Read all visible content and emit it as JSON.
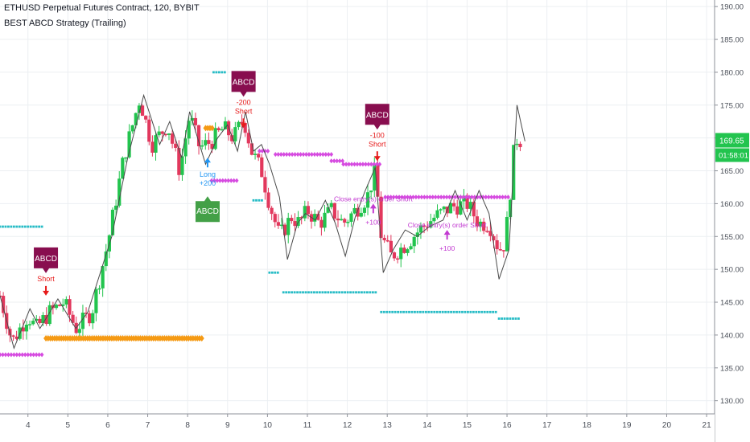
{
  "legend": {
    "symbol_line": "ETHUSD Perpetual Futures Contract, 120, BYBIT",
    "strategy_name": "BEST ABCD Strategy (Trailing)"
  },
  "colors": {
    "up": "#22c44e",
    "down": "#e2385d",
    "zigzag": "#4a4a4a",
    "teal_dots": "#27bcc6",
    "magenta_dots": "#d64be0",
    "orange_diamonds": "#f59a14",
    "short_arrow": "#e61a1a",
    "long_arrow": "#2196f3",
    "abcd_bear": "#880e4f",
    "abcd_bull": "#43a047",
    "close_label": "#c23ad1",
    "price_badge": "#22c44e",
    "grid": "#eceff2",
    "axis_text": "#4a4f58"
  },
  "chart_data": {
    "type": "candlestick",
    "title": "ETHUSD Perpetual Futures Contract, 120, BYBIT",
    "subtitle": "BEST ABCD Strategy (Trailing)",
    "xlim": [
      3.3,
      21.2
    ],
    "ylim": [
      128,
      191
    ],
    "x_ticks": [
      4,
      5,
      6,
      7,
      8,
      9,
      10,
      11,
      12,
      13,
      14,
      15,
      16,
      17,
      18,
      19,
      20,
      21
    ],
    "y_ticks": [
      "130.00",
      "135.00",
      "140.00",
      "145.00",
      "150.00",
      "155.00",
      "160.00",
      "165.00",
      "170.00",
      "175.00",
      "180.00",
      "185.00",
      "190.00"
    ],
    "grid": true,
    "current_price": {
      "value": 169.65,
      "label": "169.65",
      "countdown": "01:58:01"
    },
    "candle_path": [
      [
        3.3,
        146
      ],
      [
        3.6,
        139
      ],
      [
        4.0,
        143
      ],
      [
        4.2,
        141
      ],
      [
        4.55,
        143.5
      ],
      [
        4.9,
        145
      ],
      [
        5.2,
        141
      ],
      [
        5.6,
        143.5
      ],
      [
        6.0,
        154
      ],
      [
        6.4,
        167
      ],
      [
        6.8,
        176
      ],
      [
        7.1,
        169
      ],
      [
        7.5,
        172
      ],
      [
        7.8,
        165
      ],
      [
        8.05,
        173.5
      ],
      [
        8.3,
        168.5
      ],
      [
        8.6,
        169.5
      ],
      [
        8.9,
        171.5
      ],
      [
        9.15,
        170
      ],
      [
        9.4,
        173
      ],
      [
        9.6,
        168
      ],
      [
        9.85,
        165
      ],
      [
        10.05,
        160
      ],
      [
        10.3,
        155
      ],
      [
        10.6,
        158
      ],
      [
        10.8,
        157
      ],
      [
        11.0,
        159
      ],
      [
        11.3,
        157
      ],
      [
        11.6,
        159
      ],
      [
        11.9,
        157
      ],
      [
        12.2,
        159
      ],
      [
        12.5,
        161
      ],
      [
        12.7,
        165
      ],
      [
        12.85,
        155
      ],
      [
        13.1,
        152
      ],
      [
        13.5,
        154
      ],
      [
        13.8,
        156
      ],
      [
        14.2,
        158
      ],
      [
        14.6,
        159.5
      ],
      [
        15.0,
        160
      ],
      [
        15.3,
        157
      ],
      [
        15.55,
        157
      ],
      [
        15.8,
        153
      ],
      [
        15.95,
        154
      ],
      [
        16.1,
        163
      ],
      [
        16.2,
        170
      ],
      [
        16.4,
        169.5
      ]
    ],
    "zigzag": [
      [
        3.3,
        146
      ],
      [
        3.65,
        138
      ],
      [
        4.05,
        144
      ],
      [
        4.3,
        141
      ],
      [
        4.75,
        145.5
      ],
      [
        5.2,
        141
      ],
      [
        5.5,
        143.5
      ],
      [
        6.1,
        155
      ],
      [
        6.5,
        167
      ],
      [
        6.9,
        176.5
      ],
      [
        7.3,
        169
      ],
      [
        7.55,
        172.5
      ],
      [
        7.85,
        167
      ],
      [
        8.05,
        174
      ],
      [
        8.45,
        166
      ],
      [
        8.75,
        170
      ],
      [
        9.0,
        172
      ],
      [
        9.25,
        168
      ],
      [
        9.45,
        174
      ],
      [
        9.65,
        168
      ],
      [
        9.85,
        169
      ],
      [
        10.05,
        166
      ],
      [
        10.3,
        161
      ],
      [
        10.5,
        151.5
      ],
      [
        10.75,
        157
      ],
      [
        10.95,
        158.5
      ],
      [
        11.2,
        157.5
      ],
      [
        11.45,
        160.5
      ],
      [
        11.7,
        157
      ],
      [
        11.95,
        152
      ],
      [
        12.2,
        158
      ],
      [
        12.45,
        162
      ],
      [
        12.7,
        165.5
      ],
      [
        12.9,
        149.5
      ],
      [
        13.15,
        153
      ],
      [
        13.45,
        156
      ],
      [
        13.75,
        155
      ],
      [
        14.05,
        156.5
      ],
      [
        14.4,
        157.5
      ],
      [
        14.7,
        162
      ],
      [
        15.0,
        157.5
      ],
      [
        15.3,
        162
      ],
      [
        15.55,
        158.5
      ],
      [
        15.8,
        148.5
      ],
      [
        16.05,
        153
      ],
      [
        16.25,
        175
      ],
      [
        16.45,
        169.5
      ]
    ],
    "dot_series": [
      {
        "kind": "teal",
        "y": 156.5,
        "x": [
          3.3,
          4.35
        ]
      },
      {
        "kind": "magenta",
        "y": 137,
        "x": [
          3.3,
          4.35
        ]
      },
      {
        "kind": "orange",
        "y": 139.5,
        "x": [
          4.45,
          8.4
        ]
      },
      {
        "kind": "magenta",
        "y": 163.5,
        "x": [
          8.6,
          9.25
        ]
      },
      {
        "kind": "orange",
        "y": 171.5,
        "x": [
          8.45,
          8.65
        ]
      },
      {
        "kind": "teal",
        "y": 180,
        "x": [
          8.65,
          8.95
        ]
      },
      {
        "kind": "teal",
        "y": 160.5,
        "x": [
          9.65,
          9.9
        ]
      },
      {
        "kind": "teal",
        "y": 149.5,
        "x": [
          10.05,
          10.3
        ]
      },
      {
        "kind": "magenta",
        "y": 178.5,
        "x": [
          9.5,
          9.7
        ]
      },
      {
        "kind": "magenta",
        "y": 168,
        "x": [
          9.8,
          10.05
        ]
      },
      {
        "kind": "magenta",
        "y": 167.5,
        "x": [
          10.2,
          11.6
        ]
      },
      {
        "kind": "magenta",
        "y": 166.5,
        "x": [
          11.6,
          11.9
        ]
      },
      {
        "kind": "magenta",
        "y": 166,
        "x": [
          11.9,
          12.85
        ]
      },
      {
        "kind": "teal",
        "y": 146.5,
        "x": [
          10.4,
          12.75
        ]
      },
      {
        "kind": "magenta",
        "y": 161,
        "x": [
          12.95,
          16.05
        ]
      },
      {
        "kind": "teal",
        "y": 143.5,
        "x": [
          12.85,
          15.75
        ]
      },
      {
        "kind": "teal",
        "y": 142.5,
        "x": [
          15.8,
          16.35
        ]
      }
    ],
    "signals": [
      {
        "type": "short",
        "x": 4.45,
        "y": 146,
        "text": "Short",
        "pattern": "ABCD"
      },
      {
        "type": "short",
        "x": 9.4,
        "y": 171.5,
        "text": "-200 Short",
        "pattern": "ABCD"
      },
      {
        "type": "short",
        "x": 12.75,
        "y": 166.5,
        "text": "-100 Short",
        "pattern": "ABCD"
      },
      {
        "type": "long",
        "x": 8.5,
        "y": 167,
        "text": "Long +200",
        "pattern": "ABCD"
      },
      {
        "type": "close",
        "x": 12.65,
        "y": 160,
        "text": "Close entry(s) order Short +100"
      },
      {
        "type": "close",
        "x": 14.5,
        "y": 156,
        "text": "Close entry(s) order Short +100"
      }
    ]
  }
}
